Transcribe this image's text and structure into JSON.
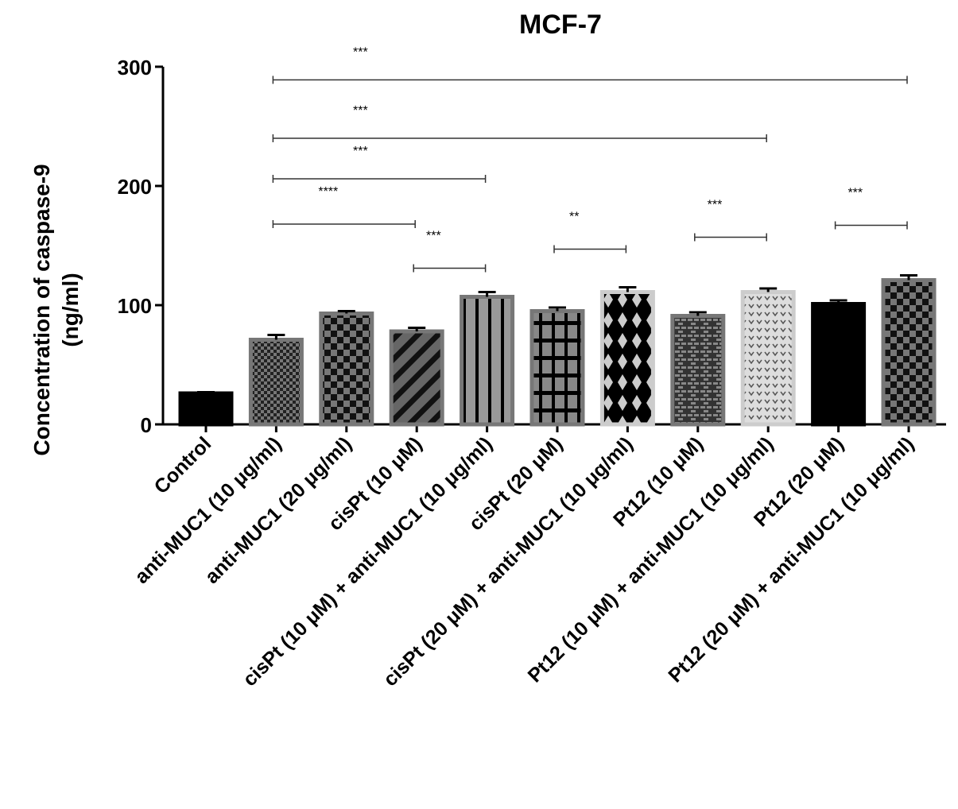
{
  "chart_data": {
    "type": "bar",
    "title": "MCF-7",
    "xlabel": "",
    "ylabel": "Concentration of caspase-9 (ng/ml)",
    "ylabel_lines": [
      "Concentration of caspase-9",
      "(ng/ml)"
    ],
    "ylim": [
      0,
      300
    ],
    "yticks": [
      0,
      100,
      200,
      300
    ],
    "grid": false,
    "categories": [
      "Control",
      "anti-MUC1 (10 μg/ml)",
      "anti-MUC1 (20 μg/ml)",
      "cisPt (10 μM)",
      "cisPt (10 μM) + anti-MUC1 (10 μg/ml)",
      "cisPt (20 μM)",
      "cisPt (20 μM) + anti-MUC1 (10 μg/ml)",
      "Pt12 (10 μM)",
      "Pt12 (10 μM) + anti-MUC1 (10 μg/ml)",
      "Pt12 (20 μM)",
      "Pt12 (20 μM) + anti-MUC1 (10 μg/ml)"
    ],
    "values": [
      26,
      71,
      93,
      78,
      107,
      95,
      111,
      91,
      111,
      101,
      121
    ],
    "errors": [
      1,
      4,
      2,
      3,
      4,
      3,
      4,
      3,
      3,
      3,
      4
    ],
    "patterns": [
      "solid-black",
      "fine-check",
      "check",
      "diagonal",
      "vertical",
      "grid",
      "diamond",
      "brick",
      "dots",
      "solid-black",
      "check"
    ],
    "significance": [
      {
        "from": 1,
        "to": 10,
        "y": 289,
        "label": "***"
      },
      {
        "from": 1,
        "to": 8,
        "y": 240,
        "label": "***"
      },
      {
        "from": 1,
        "to": 4,
        "y": 206,
        "label": "***"
      },
      {
        "from": 1,
        "to": 3,
        "y": 168,
        "label": "****"
      },
      {
        "from": 3,
        "to": 4,
        "y": 131,
        "label": "***"
      },
      {
        "from": 5,
        "to": 6,
        "y": 147,
        "label": "**"
      },
      {
        "from": 7,
        "to": 8,
        "y": 157,
        "label": "***"
      },
      {
        "from": 9,
        "to": 10,
        "y": 167,
        "label": "***"
      }
    ]
  }
}
